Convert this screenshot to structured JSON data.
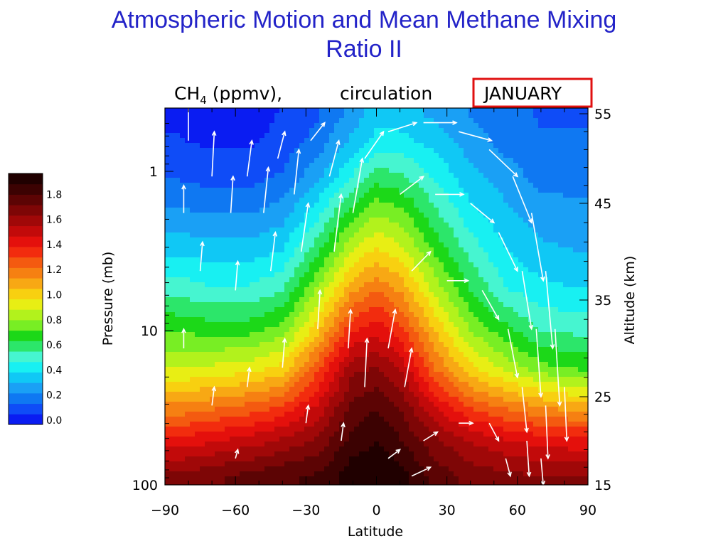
{
  "slide": {
    "title_line1": "Atmospheric Motion and Mean Methane Mixing",
    "title_line2": "Ratio II",
    "accent_color": "#2323c8"
  },
  "chart_data": {
    "type": "heatmap",
    "title_parts": {
      "species": "CH",
      "subscript": "4",
      "units": " (ppmv),",
      "field2": "circulation",
      "month": "JANUARY"
    },
    "month_box_color": "#e01010",
    "xlabel": "Latitude",
    "ylabel_left": "Pressure (mb)",
    "ylabel_right": "Altitude (km)",
    "xlim": [
      -90,
      90
    ],
    "x_ticks": [
      -90,
      -60,
      -30,
      0,
      30,
      60,
      90
    ],
    "x_tick_labels": [
      "−90",
      "−60",
      "−30",
      "0",
      "30",
      "60",
      "90"
    ],
    "pressure_scale": "log",
    "pressure_ticks": [
      1,
      10,
      100
    ],
    "pressure_tick_labels": [
      "1",
      "10",
      "100"
    ],
    "altitude_ticks": [
      15,
      25,
      35,
      45,
      55
    ],
    "altitude_tick_labels": [
      "15",
      "25",
      "35",
      "45",
      "55"
    ],
    "colorbar": {
      "levels": [
        0.0,
        0.2,
        0.4,
        0.6,
        0.8,
        1.0,
        1.2,
        1.4,
        1.6,
        1.8
      ],
      "labels": [
        "0.0",
        "0.2",
        "0.4",
        "0.6",
        "0.8",
        "1.0",
        "1.2",
        "1.4",
        "1.6",
        "1.8"
      ],
      "colors": [
        "#0a1cf2",
        "#0f4cf7",
        "#0f78f2",
        "#1aa0f5",
        "#10c8f5",
        "#18f0f2",
        "#46f5d0",
        "#2ce66a",
        "#1cd818",
        "#78ee24",
        "#b2f21c",
        "#e8ee14",
        "#f8d010",
        "#f8a814",
        "#f68012",
        "#f45a10",
        "#f22c0e",
        "#e4100c",
        "#c20a0a",
        "#a00808",
        "#7e0606",
        "#5c0404",
        "#3c0202",
        "#200000"
      ]
    },
    "ch4_field": {
      "latitude": [
        -85,
        -70,
        -55,
        -40,
        -25,
        -10,
        0,
        10,
        25,
        40,
        55,
        70,
        85
      ],
      "altitude_km": [
        16,
        20,
        24,
        28,
        32,
        36,
        40,
        44,
        48,
        52,
        55
      ],
      "values": [
        [
          1.52,
          1.56,
          1.6,
          1.64,
          1.66,
          1.78,
          1.8,
          1.76,
          1.62,
          1.55,
          1.52,
          1.5,
          1.5
        ],
        [
          1.3,
          1.34,
          1.38,
          1.44,
          1.52,
          1.68,
          1.72,
          1.66,
          1.52,
          1.42,
          1.36,
          1.32,
          1.3
        ],
        [
          1.06,
          1.1,
          1.14,
          1.2,
          1.36,
          1.6,
          1.64,
          1.56,
          1.34,
          1.18,
          1.1,
          1.04,
          1.0
        ],
        [
          0.82,
          0.84,
          0.86,
          0.92,
          1.18,
          1.48,
          1.5,
          1.42,
          1.12,
          0.92,
          0.8,
          0.7,
          0.66
        ],
        [
          0.66,
          0.64,
          0.64,
          0.7,
          0.94,
          1.26,
          1.32,
          1.22,
          0.96,
          0.74,
          0.62,
          0.52,
          0.5
        ],
        [
          0.5,
          0.46,
          0.46,
          0.52,
          0.76,
          1.04,
          1.12,
          1.04,
          0.8,
          0.6,
          0.46,
          0.4,
          0.38
        ],
        [
          0.36,
          0.34,
          0.34,
          0.38,
          0.58,
          0.84,
          0.92,
          0.86,
          0.66,
          0.5,
          0.38,
          0.32,
          0.3
        ],
        [
          0.24,
          0.22,
          0.22,
          0.26,
          0.42,
          0.64,
          0.74,
          0.7,
          0.54,
          0.4,
          0.32,
          0.26,
          0.24
        ],
        [
          0.14,
          0.12,
          0.12,
          0.16,
          0.28,
          0.46,
          0.56,
          0.54,
          0.44,
          0.32,
          0.26,
          0.2,
          0.2
        ],
        [
          0.08,
          0.06,
          0.06,
          0.1,
          0.18,
          0.32,
          0.4,
          0.4,
          0.34,
          0.26,
          0.2,
          0.16,
          0.16
        ],
        [
          0.06,
          0.04,
          0.04,
          0.08,
          0.14,
          0.26,
          0.34,
          0.34,
          0.28,
          0.22,
          0.18,
          0.14,
          0.14
        ]
      ]
    },
    "circulation_arrows": [
      {
        "lat": -80,
        "alt": 52,
        "dlat": 0,
        "dalt": 6
      },
      {
        "lat": -70,
        "alt": 48,
        "dlat": 1,
        "dalt": 5
      },
      {
        "lat": -62,
        "alt": 44,
        "dlat": 1,
        "dalt": 4
      },
      {
        "lat": -55,
        "alt": 48,
        "dlat": 2,
        "dalt": 4
      },
      {
        "lat": -48,
        "alt": 44,
        "dlat": 2,
        "dalt": 5
      },
      {
        "lat": -42,
        "alt": 50,
        "dlat": 3,
        "dalt": 3
      },
      {
        "lat": -35,
        "alt": 46,
        "dlat": 2,
        "dalt": 5
      },
      {
        "lat": -28,
        "alt": 52,
        "dlat": 6,
        "dalt": 2
      },
      {
        "lat": -20,
        "alt": 48,
        "dlat": 4,
        "dalt": 4
      },
      {
        "lat": -75,
        "alt": 38,
        "dlat": 1,
        "dalt": 3
      },
      {
        "lat": -60,
        "alt": 36,
        "dlat": 1,
        "dalt": 3
      },
      {
        "lat": -45,
        "alt": 38,
        "dlat": 2,
        "dalt": 4
      },
      {
        "lat": -32,
        "alt": 40,
        "dlat": 3,
        "dalt": 5
      },
      {
        "lat": -18,
        "alt": 40,
        "dlat": 3,
        "dalt": 6
      },
      {
        "lat": -10,
        "alt": 44,
        "dlat": 4,
        "dalt": 6
      },
      {
        "lat": -5,
        "alt": 50,
        "dlat": 8,
        "dalt": 3
      },
      {
        "lat": 5,
        "alt": 53,
        "dlat": 12,
        "dalt": 1
      },
      {
        "lat": 20,
        "alt": 54,
        "dlat": 14,
        "dalt": 0
      },
      {
        "lat": 35,
        "alt": 53,
        "dlat": 14,
        "dalt": -1
      },
      {
        "lat": 48,
        "alt": 51,
        "dlat": 12,
        "dalt": -3
      },
      {
        "lat": 58,
        "alt": 48,
        "dlat": 8,
        "dalt": -5
      },
      {
        "lat": 66,
        "alt": 44,
        "dlat": 5,
        "dalt": -7
      },
      {
        "lat": 72,
        "alt": 38,
        "dlat": 3,
        "dalt": -8
      },
      {
        "lat": 76,
        "alt": 32,
        "dlat": 2,
        "dalt": -8
      },
      {
        "lat": 80,
        "alt": 26,
        "dlat": 1,
        "dalt": -6
      },
      {
        "lat": 10,
        "alt": 46,
        "dlat": 10,
        "dalt": 2
      },
      {
        "lat": 25,
        "alt": 46,
        "dlat": 12,
        "dalt": 0
      },
      {
        "lat": 40,
        "alt": 45,
        "dlat": 10,
        "dalt": -2
      },
      {
        "lat": 52,
        "alt": 42,
        "dlat": 8,
        "dalt": -4
      },
      {
        "lat": 62,
        "alt": 38,
        "dlat": 4,
        "dalt": -6
      },
      {
        "lat": 68,
        "alt": 32,
        "dlat": 2,
        "dalt": -7
      },
      {
        "lat": 72,
        "alt": 24,
        "dlat": 1,
        "dalt": -6
      },
      {
        "lat": 15,
        "alt": 38,
        "dlat": 8,
        "dalt": 2
      },
      {
        "lat": 30,
        "alt": 37,
        "dlat": 9,
        "dalt": 0
      },
      {
        "lat": 45,
        "alt": 36,
        "dlat": 7,
        "dalt": -3
      },
      {
        "lat": 56,
        "alt": 32,
        "dlat": 4,
        "dalt": -5
      },
      {
        "lat": 62,
        "alt": 26,
        "dlat": 2,
        "dalt": -5
      },
      {
        "lat": 64,
        "alt": 20,
        "dlat": 1,
        "dalt": -4
      },
      {
        "lat": -25,
        "alt": 32,
        "dlat": 1,
        "dalt": 4
      },
      {
        "lat": -12,
        "alt": 30,
        "dlat": 1,
        "dalt": 4
      },
      {
        "lat": -5,
        "alt": 26,
        "dlat": 1,
        "dalt": 5
      },
      {
        "lat": 5,
        "alt": 30,
        "dlat": 3,
        "dalt": 4
      },
      {
        "lat": 12,
        "alt": 26,
        "dlat": 3,
        "dalt": 4
      },
      {
        "lat": -40,
        "alt": 28,
        "dlat": 1,
        "dalt": 3
      },
      {
        "lat": -55,
        "alt": 26,
        "dlat": 1,
        "dalt": 2
      },
      {
        "lat": -70,
        "alt": 24,
        "dlat": 1,
        "dalt": 2
      },
      {
        "lat": -30,
        "alt": 22,
        "dlat": 1,
        "dalt": 2
      },
      {
        "lat": -15,
        "alt": 20,
        "dlat": 1,
        "dalt": 2
      },
      {
        "lat": 20,
        "alt": 20,
        "dlat": 6,
        "dalt": 1
      },
      {
        "lat": 35,
        "alt": 22,
        "dlat": 6,
        "dalt": 0
      },
      {
        "lat": 48,
        "alt": 22,
        "dlat": 4,
        "dalt": -2
      },
      {
        "lat": 5,
        "alt": 18,
        "dlat": 5,
        "dalt": 1
      },
      {
        "lat": 15,
        "alt": 16,
        "dlat": 8,
        "dalt": 1
      },
      {
        "lat": -60,
        "alt": 18,
        "dlat": 1,
        "dalt": 1
      },
      {
        "lat": 55,
        "alt": 18,
        "dlat": 2,
        "dalt": -2
      },
      {
        "lat": 70,
        "alt": 18,
        "dlat": 1,
        "dalt": -3
      },
      {
        "lat": -82,
        "alt": 30,
        "dlat": 0,
        "dalt": 2
      },
      {
        "lat": -82,
        "alt": 44,
        "dlat": 0,
        "dalt": 3
      }
    ]
  }
}
